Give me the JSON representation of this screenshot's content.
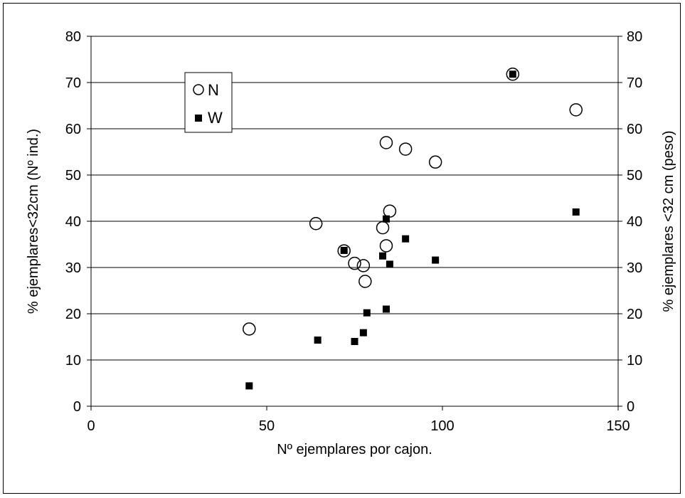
{
  "chart_data": {
    "type": "scatter",
    "xlabel": "Nº ejemplares por cajon.",
    "ylabel": "% ejemplares<32cm (Nº ind.)",
    "y2label": "% ejemplares <32 cm (peso)",
    "xlim": [
      0,
      150
    ],
    "ylim": [
      0,
      80
    ],
    "y2lim": [
      0,
      80
    ],
    "xticks": [
      "0",
      "50",
      "100",
      "150"
    ],
    "yticks": [
      "0",
      "10",
      "20",
      "30",
      "40",
      "50",
      "60",
      "70",
      "80"
    ],
    "y2ticks": [
      "0",
      "10",
      "20",
      "30",
      "40",
      "50",
      "60",
      "70",
      "80"
    ],
    "grid": "horizontal",
    "legend_position": "top-left",
    "series": [
      {
        "name": "N",
        "marker": "open-circle",
        "color": "#000000",
        "x": [
          45,
          64,
          72,
          75,
          77.5,
          78,
          83,
          84,
          84,
          85,
          89.5,
          98,
          120,
          138
        ],
        "y": [
          16.7,
          39.5,
          33.6,
          30.9,
          30.4,
          27,
          38.6,
          34.7,
          57,
          42.2,
          55.6,
          52.8,
          71.8,
          64.1
        ]
      },
      {
        "name": "W",
        "marker": "filled-square",
        "color": "#000000",
        "x": [
          45,
          64.5,
          72,
          75,
          77.5,
          78.5,
          83,
          84,
          84,
          85,
          89.5,
          98,
          120,
          138
        ],
        "y": [
          4.4,
          14.3,
          33.7,
          14.0,
          15.9,
          20.2,
          32.5,
          21.0,
          40.5,
          30.7,
          36.2,
          31.6,
          71.8,
          42.0
        ]
      }
    ]
  }
}
